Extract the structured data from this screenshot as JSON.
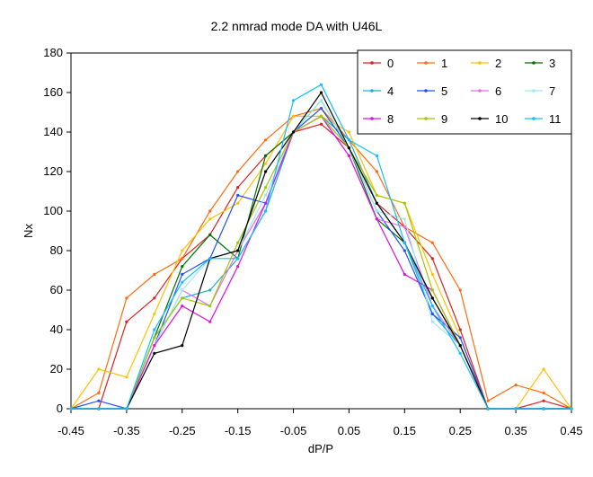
{
  "chart_data": {
    "type": "line",
    "title": "2.2 nmrad mode DA with U46L",
    "xlabel": "dP/P",
    "ylabel": "Nx",
    "xlim": [
      -0.45,
      0.45
    ],
    "ylim": [
      0,
      180
    ],
    "xticks": [
      "-0.45",
      "-0.35",
      "-0.25",
      "-0.15",
      "-0.05",
      "0.05",
      "0.15",
      "0.25",
      "0.35",
      "0.45"
    ],
    "yticks": [
      "0",
      "20",
      "40",
      "60",
      "80",
      "100",
      "120",
      "140",
      "160",
      "180"
    ],
    "grid": false,
    "legend_position": "top-right",
    "x": [
      -0.45,
      -0.4,
      -0.35,
      -0.3,
      -0.25,
      -0.2,
      -0.15,
      -0.1,
      -0.05,
      0.0,
      0.05,
      0.1,
      0.15,
      0.2,
      0.25,
      0.3,
      0.35,
      0.4,
      0.45
    ],
    "series": [
      {
        "name": "0",
        "color": "#dd2020",
        "values": [
          0,
          0,
          44,
          56,
          76,
          88,
          112,
          128,
          140,
          144,
          132,
          104,
          92,
          76,
          40,
          0,
          0,
          4,
          0
        ]
      },
      {
        "name": "1",
        "color": "#ff6a10",
        "values": [
          0,
          8,
          56,
          68,
          76,
          100,
          120,
          136,
          148,
          152,
          136,
          120,
          92,
          84,
          60,
          4,
          12,
          8,
          0
        ]
      },
      {
        "name": "2",
        "color": "#ffc000",
        "values": [
          0,
          20,
          16,
          48,
          80,
          96,
          104,
          124,
          148,
          148,
          140,
          108,
          104,
          68,
          36,
          0,
          0,
          20,
          0
        ]
      },
      {
        "name": "3",
        "color": "#007000",
        "values": [
          0,
          0,
          0,
          36,
          72,
          88,
          76,
          128,
          140,
          156,
          132,
          96,
          84,
          56,
          32,
          0,
          0,
          0,
          0
        ]
      },
      {
        "name": "4",
        "color": "#20b0d0",
        "values": [
          0,
          0,
          0,
          36,
          56,
          60,
          76,
          100,
          140,
          148,
          136,
          104,
          84,
          48,
          32,
          0,
          0,
          0,
          0
        ]
      },
      {
        "name": "5",
        "color": "#2050ff",
        "values": [
          0,
          4,
          0,
          32,
          68,
          76,
          108,
          104,
          140,
          152,
          132,
          100,
          80,
          48,
          36,
          0,
          0,
          0,
          0
        ]
      },
      {
        "name": "6",
        "color": "#e070e8",
        "values": [
          0,
          0,
          0,
          32,
          60,
          52,
          80,
          104,
          140,
          148,
          128,
          96,
          92,
          52,
          32,
          0,
          0,
          0,
          0
        ]
      },
      {
        "name": "7",
        "color": "#a0e8f0",
        "values": [
          0,
          0,
          0,
          32,
          60,
          76,
          80,
          108,
          140,
          156,
          132,
          100,
          96,
          44,
          32,
          0,
          0,
          0,
          0
        ]
      },
      {
        "name": "8",
        "color": "#e010e0",
        "values": [
          0,
          0,
          0,
          32,
          52,
          44,
          72,
          104,
          140,
          148,
          128,
          96,
          68,
          60,
          32,
          0,
          0,
          0,
          0
        ]
      },
      {
        "name": "9",
        "color": "#a0c800",
        "values": [
          0,
          0,
          0,
          36,
          56,
          52,
          84,
          112,
          140,
          148,
          132,
          108,
          104,
          60,
          32,
          0,
          0,
          0,
          0
        ]
      },
      {
        "name": "10",
        "color": "#000000",
        "values": [
          0,
          0,
          0,
          28,
          32,
          76,
          80,
          120,
          140,
          160,
          132,
          104,
          84,
          56,
          32,
          0,
          0,
          0,
          0
        ]
      },
      {
        "name": "11",
        "color": "#10c0ff",
        "values": [
          0,
          0,
          0,
          40,
          64,
          76,
          76,
          100,
          156,
          164,
          136,
          128,
          84,
          52,
          28,
          0,
          0,
          0,
          0
        ]
      }
    ]
  }
}
